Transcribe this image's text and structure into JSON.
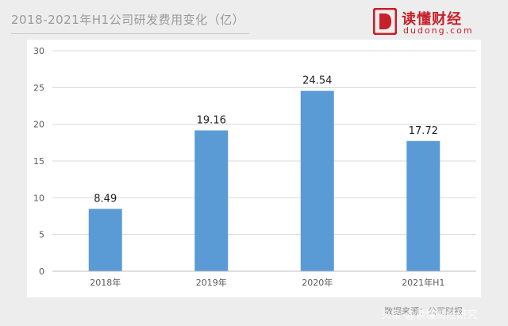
{
  "header": {
    "title": "2018-2021年H1公司研发费用变化（亿）"
  },
  "logo": {
    "name": "读懂财经",
    "url": "dudong.com",
    "brand_color": "#c8202a"
  },
  "footer": {
    "source": "数据来源：公司财报",
    "watermark": "头条 @读懂财经研究"
  },
  "colors": {
    "bar": "#5b9bd5",
    "grid": "#d9d9d9",
    "axis_text": "#595959"
  },
  "chart_data": {
    "type": "bar",
    "categories": [
      "2018年",
      "2019年",
      "2020年",
      "2021年H1"
    ],
    "values": [
      8.49,
      19.16,
      24.54,
      17.72
    ],
    "value_labels": [
      "8.49",
      "19.16",
      "24.54",
      "17.72"
    ],
    "ylim": [
      0,
      30
    ],
    "yticks": [
      0,
      5,
      10,
      15,
      20,
      25,
      30
    ],
    "grid": true,
    "legend": "none"
  }
}
